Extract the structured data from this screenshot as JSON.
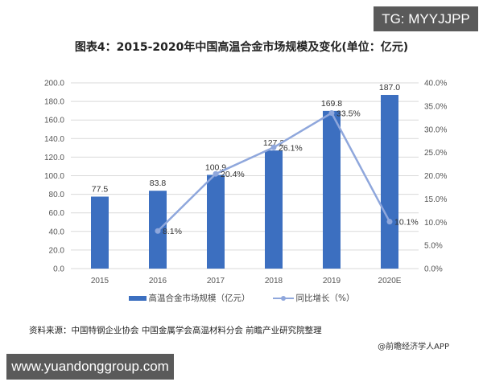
{
  "badges": {
    "top_right": "TG: MYYJJPP",
    "bottom_left": "www.yuandonggroup.com"
  },
  "title": "图表4：2015-2020年中国高温合金市场规模及变化(单位：亿元)",
  "legend": {
    "bar_label": "高温合金市场规模（亿元）",
    "line_label": "同比增长（%）"
  },
  "source": "资料来源：中国特钢企业协会 中国金属学会高温材料分会 前瞻产业研究院整理",
  "credit": "@前瞻经济学人APP",
  "colors": {
    "bar": "#3c6fc0",
    "line": "#8fa7dc",
    "grid": "#d9d9d9"
  },
  "chart_data": {
    "type": "bar",
    "title": "图表4：2015-2020年中国高温合金市场规模及变化(单位：亿元)",
    "categories": [
      "2015",
      "2016",
      "2017",
      "2018",
      "2019",
      "2020E"
    ],
    "series": [
      {
        "name": "高温合金市场规模（亿元）",
        "type": "bar",
        "axis": "left",
        "values": [
          77.5,
          83.8,
          100.9,
          127.2,
          169.8,
          187.0
        ],
        "labels": [
          "77.5",
          "83.8",
          "100.9",
          "127.2",
          "169.8",
          "187.0"
        ]
      },
      {
        "name": "同比增长（%）",
        "type": "line",
        "axis": "right",
        "values": [
          null,
          8.1,
          20.4,
          26.1,
          33.5,
          10.1
        ],
        "labels": [
          "",
          "8.1%",
          "20.4%",
          "26.1%",
          "33.5%",
          "10.1%"
        ]
      }
    ],
    "y_left": {
      "ylim": [
        0,
        200
      ],
      "ticks": [
        "0.0",
        "20.0",
        "40.0",
        "60.0",
        "80.0",
        "100.0",
        "120.0",
        "140.0",
        "160.0",
        "180.0",
        "200.0"
      ]
    },
    "y_right": {
      "ylim": [
        0,
        40
      ],
      "ticks": [
        "0.0%",
        "5.0%",
        "10.0%",
        "15.0%",
        "20.0%",
        "25.0%",
        "30.0%",
        "35.0%",
        "40.0%"
      ]
    },
    "xlabel": "",
    "ylabel": "",
    "grid": true,
    "legend_position": "bottom"
  }
}
